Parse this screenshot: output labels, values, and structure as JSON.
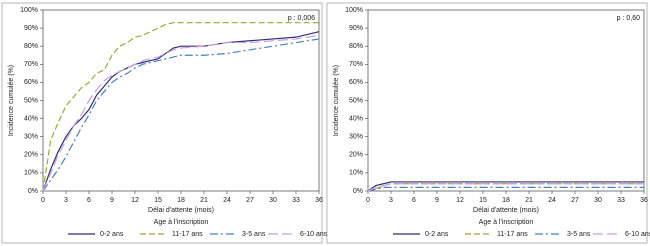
{
  "chart_data": [
    {
      "type": "line",
      "p_value": "p : 0,006",
      "xlabel": "Délai d'attente (mois)",
      "ylabel": "Incidence cumulée (%)",
      "legend_title": "Age à l'inscription",
      "x": [
        0,
        1,
        2,
        3,
        4,
        5,
        6,
        7,
        8,
        9,
        10,
        11,
        12,
        13,
        14,
        15,
        16,
        17,
        18,
        21,
        24,
        27,
        30,
        33,
        36
      ],
      "xlim": [
        0,
        36
      ],
      "xticks": [
        0,
        3,
        6,
        9,
        12,
        15,
        18,
        21,
        24,
        27,
        30,
        33,
        36
      ],
      "ylim": [
        0,
        100
      ],
      "yticks": [
        {
          "value": 0,
          "label": "0%"
        },
        {
          "value": 10,
          "label": "10%"
        },
        {
          "value": 20,
          "label": "20%"
        },
        {
          "value": 30,
          "label": "30%"
        },
        {
          "value": 40,
          "label": "40%"
        },
        {
          "value": 50,
          "label": "50%"
        },
        {
          "value": 60,
          "label": "60%"
        },
        {
          "value": 70,
          "label": "70%"
        },
        {
          "value": 80,
          "label": "80%"
        },
        {
          "value": 90,
          "label": "90%"
        },
        {
          "value": 100,
          "label": "100%"
        }
      ],
      "series": [
        {
          "name": "0-2 ans",
          "color": "#2e2e7a",
          "dash": "none",
          "values": [
            0,
            12,
            22,
            30,
            36,
            40,
            45,
            53,
            58,
            63,
            66,
            68,
            70,
            71,
            72,
            73,
            76,
            79,
            80,
            80,
            82,
            83,
            84,
            85,
            88
          ]
        },
        {
          "name": "11-17 ans",
          "color": "#9aa83a",
          "dash": "6,3",
          "values": [
            0,
            28,
            38,
            47,
            52,
            57,
            60,
            65,
            67,
            75,
            80,
            82,
            85,
            86,
            88,
            90,
            92,
            93,
            93,
            93,
            93,
            93,
            93,
            93,
            93
          ]
        },
        {
          "name": "3-5 ans",
          "color": "#4a7fc0",
          "dash": "8,3,2,3",
          "values": [
            0,
            6,
            12,
            19,
            27,
            35,
            42,
            50,
            55,
            60,
            63,
            65,
            68,
            70,
            71,
            72,
            73,
            74,
            75,
            75,
            76,
            78,
            80,
            82,
            84
          ]
        },
        {
          "name": "6-10 ans",
          "color": "#c8a0d8",
          "dash": "10,4",
          "values": [
            0,
            10,
            20,
            28,
            36,
            42,
            50,
            56,
            61,
            64,
            66,
            68,
            70,
            72,
            73,
            74,
            76,
            78,
            79,
            80,
            82,
            82,
            83,
            84,
            86
          ]
        }
      ]
    },
    {
      "type": "line",
      "p_value": "p : 0,60",
      "xlabel": "Délai d'attente (mois)",
      "ylabel": "Incidence cumulée (%)",
      "legend_title": "Age à l'inscription",
      "x": [
        0,
        1,
        2,
        3,
        36
      ],
      "xlim": [
        0,
        36
      ],
      "xticks": [
        0,
        3,
        6,
        9,
        12,
        15,
        18,
        21,
        24,
        27,
        30,
        33,
        36
      ],
      "ylim": [
        0,
        100
      ],
      "yticks": [
        {
          "value": 0,
          "label": "0%"
        },
        {
          "value": 10,
          "label": "10%"
        },
        {
          "value": 20,
          "label": "20%"
        },
        {
          "value": 30,
          "label": "30%"
        },
        {
          "value": 40,
          "label": "40%"
        },
        {
          "value": 50,
          "label": "50%"
        },
        {
          "value": 60,
          "label": "60%"
        },
        {
          "value": 70,
          "label": "70%"
        },
        {
          "value": 80,
          "label": "80%"
        },
        {
          "value": 90,
          "label": "90%"
        },
        {
          "value": 100,
          "label": "100%"
        }
      ],
      "series": [
        {
          "name": "0-2 ans",
          "color": "#2e2e7a",
          "dash": "none",
          "values": [
            0,
            3,
            4,
            5,
            5
          ]
        },
        {
          "name": "11-17 ans",
          "color": "#9aa83a",
          "dash": "6,3",
          "values": [
            0,
            1,
            3,
            4,
            4
          ]
        },
        {
          "name": "3-5 ans",
          "color": "#4a7fc0",
          "dash": "8,3,2,3",
          "values": [
            0,
            1,
            2,
            2,
            2
          ]
        },
        {
          "name": "6-10 ans",
          "color": "#c8a0d8",
          "dash": "10,4",
          "values": [
            0,
            2,
            3,
            4,
            4
          ]
        }
      ]
    }
  ]
}
